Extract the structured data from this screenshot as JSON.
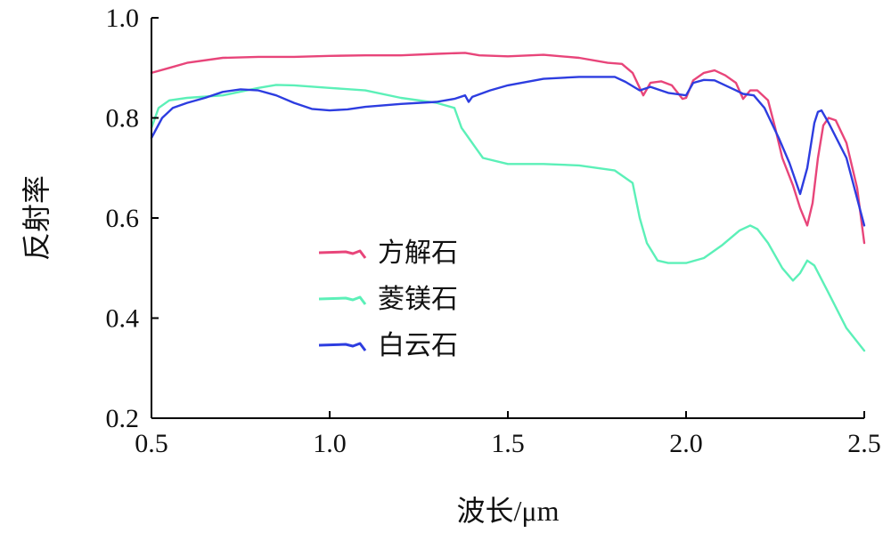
{
  "chart_data": {
    "type": "line",
    "title": "",
    "xlabel": "波长/μm",
    "ylabel": "反射率",
    "xlim": [
      0.5,
      2.5
    ],
    "ylim": [
      0.2,
      1.0
    ],
    "xticks": [
      "0.5",
      "1.0",
      "1.5",
      "2.0",
      "2.5"
    ],
    "yticks": [
      "0.2",
      "0.4",
      "0.6",
      "0.8",
      "1.0"
    ],
    "grid": false,
    "legend_position": "center-left",
    "series": [
      {
        "name": "方解石",
        "color": "#e8457a",
        "points": [
          [
            0.5,
            0.89
          ],
          [
            0.55,
            0.9
          ],
          [
            0.6,
            0.91
          ],
          [
            0.7,
            0.92
          ],
          [
            0.8,
            0.922
          ],
          [
            0.9,
            0.922
          ],
          [
            1.0,
            0.924
          ],
          [
            1.1,
            0.925
          ],
          [
            1.2,
            0.925
          ],
          [
            1.3,
            0.928
          ],
          [
            1.38,
            0.93
          ],
          [
            1.42,
            0.925
          ],
          [
            1.5,
            0.923
          ],
          [
            1.6,
            0.926
          ],
          [
            1.7,
            0.92
          ],
          [
            1.78,
            0.91
          ],
          [
            1.82,
            0.908
          ],
          [
            1.85,
            0.89
          ],
          [
            1.87,
            0.86
          ],
          [
            1.88,
            0.845
          ],
          [
            1.9,
            0.87
          ],
          [
            1.93,
            0.873
          ],
          [
            1.96,
            0.865
          ],
          [
            1.99,
            0.838
          ],
          [
            2.0,
            0.84
          ],
          [
            2.02,
            0.875
          ],
          [
            2.05,
            0.89
          ],
          [
            2.08,
            0.895
          ],
          [
            2.11,
            0.885
          ],
          [
            2.14,
            0.87
          ],
          [
            2.16,
            0.838
          ],
          [
            2.18,
            0.855
          ],
          [
            2.2,
            0.855
          ],
          [
            2.23,
            0.835
          ],
          [
            2.25,
            0.78
          ],
          [
            2.27,
            0.72
          ],
          [
            2.3,
            0.665
          ],
          [
            2.32,
            0.62
          ],
          [
            2.34,
            0.585
          ],
          [
            2.355,
            0.63
          ],
          [
            2.37,
            0.72
          ],
          [
            2.385,
            0.785
          ],
          [
            2.4,
            0.8
          ],
          [
            2.42,
            0.795
          ],
          [
            2.45,
            0.75
          ],
          [
            2.48,
            0.66
          ],
          [
            2.5,
            0.55
          ]
        ]
      },
      {
        "name": "菱镁石",
        "color": "#5cf0b8",
        "points": [
          [
            0.5,
            0.78
          ],
          [
            0.52,
            0.82
          ],
          [
            0.55,
            0.835
          ],
          [
            0.6,
            0.84
          ],
          [
            0.7,
            0.845
          ],
          [
            0.8,
            0.86
          ],
          [
            0.85,
            0.866
          ],
          [
            0.9,
            0.865
          ],
          [
            1.0,
            0.86
          ],
          [
            1.1,
            0.855
          ],
          [
            1.2,
            0.84
          ],
          [
            1.3,
            0.83
          ],
          [
            1.35,
            0.82
          ],
          [
            1.37,
            0.78
          ],
          [
            1.39,
            0.76
          ],
          [
            1.41,
            0.74
          ],
          [
            1.43,
            0.72
          ],
          [
            1.5,
            0.708
          ],
          [
            1.6,
            0.708
          ],
          [
            1.7,
            0.705
          ],
          [
            1.8,
            0.695
          ],
          [
            1.85,
            0.67
          ],
          [
            1.87,
            0.6
          ],
          [
            1.89,
            0.55
          ],
          [
            1.92,
            0.515
          ],
          [
            1.95,
            0.51
          ],
          [
            2.0,
            0.51
          ],
          [
            2.05,
            0.52
          ],
          [
            2.1,
            0.545
          ],
          [
            2.15,
            0.575
          ],
          [
            2.18,
            0.585
          ],
          [
            2.2,
            0.578
          ],
          [
            2.23,
            0.55
          ],
          [
            2.27,
            0.5
          ],
          [
            2.3,
            0.475
          ],
          [
            2.32,
            0.49
          ],
          [
            2.34,
            0.515
          ],
          [
            2.36,
            0.505
          ],
          [
            2.4,
            0.45
          ],
          [
            2.45,
            0.38
          ],
          [
            2.5,
            0.335
          ]
        ]
      },
      {
        "name": "白云石",
        "color": "#2d3de0",
        "points": [
          [
            0.5,
            0.76
          ],
          [
            0.53,
            0.8
          ],
          [
            0.56,
            0.82
          ],
          [
            0.6,
            0.83
          ],
          [
            0.65,
            0.84
          ],
          [
            0.7,
            0.852
          ],
          [
            0.75,
            0.857
          ],
          [
            0.8,
            0.855
          ],
          [
            0.85,
            0.845
          ],
          [
            0.9,
            0.83
          ],
          [
            0.95,
            0.818
          ],
          [
            1.0,
            0.815
          ],
          [
            1.05,
            0.817
          ],
          [
            1.1,
            0.822
          ],
          [
            1.2,
            0.828
          ],
          [
            1.3,
            0.832
          ],
          [
            1.35,
            0.838
          ],
          [
            1.38,
            0.845
          ],
          [
            1.39,
            0.832
          ],
          [
            1.4,
            0.842
          ],
          [
            1.45,
            0.855
          ],
          [
            1.5,
            0.865
          ],
          [
            1.6,
            0.878
          ],
          [
            1.7,
            0.882
          ],
          [
            1.8,
            0.882
          ],
          [
            1.83,
            0.872
          ],
          [
            1.87,
            0.855
          ],
          [
            1.9,
            0.862
          ],
          [
            1.95,
            0.85
          ],
          [
            2.0,
            0.845
          ],
          [
            2.02,
            0.87
          ],
          [
            2.05,
            0.876
          ],
          [
            2.08,
            0.875
          ],
          [
            2.11,
            0.865
          ],
          [
            2.14,
            0.855
          ],
          [
            2.16,
            0.848
          ],
          [
            2.19,
            0.845
          ],
          [
            2.22,
            0.82
          ],
          [
            2.26,
            0.76
          ],
          [
            2.29,
            0.71
          ],
          [
            2.32,
            0.648
          ],
          [
            2.34,
            0.7
          ],
          [
            2.36,
            0.79
          ],
          [
            2.37,
            0.812
          ],
          [
            2.38,
            0.815
          ],
          [
            2.4,
            0.79
          ],
          [
            2.45,
            0.72
          ],
          [
            2.5,
            0.585
          ]
        ]
      }
    ]
  }
}
